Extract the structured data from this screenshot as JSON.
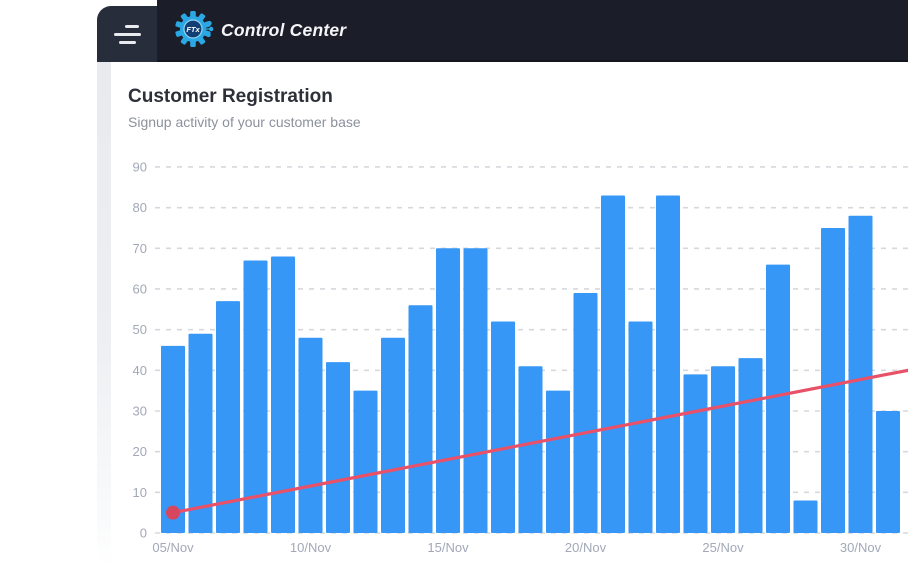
{
  "header": {
    "brand": "Control Center",
    "logo_badge": "FTx",
    "menu_icon": "hamburger-icon",
    "colors": {
      "bar": "#1b1e28",
      "menu_box": "#272d3b",
      "logo_blue": "#2ba7e3",
      "logo_navy": "#123f73"
    }
  },
  "card": {
    "title": "Customer Registration",
    "subtitle": "Signup activity of your customer base"
  },
  "chart_data": {
    "type": "bar",
    "title": "Customer Registration",
    "categories": [
      "05/Nov",
      "06/Nov",
      "07/Nov",
      "08/Nov",
      "09/Nov",
      "10/Nov",
      "11/Nov",
      "12/Nov",
      "13/Nov",
      "14/Nov",
      "15/Nov",
      "16/Nov",
      "17/Nov",
      "18/Nov",
      "19/Nov",
      "20/Nov",
      "21/Nov",
      "22/Nov",
      "23/Nov",
      "24/Nov",
      "25/Nov",
      "26/Nov",
      "27/Nov",
      "28/Nov",
      "29/Nov",
      "30/Nov",
      "01/Dec"
    ],
    "series": [
      {
        "name": "registrations",
        "type": "bar",
        "color": "#3797f6",
        "values": [
          46,
          49,
          57,
          67,
          68,
          48,
          42,
          35,
          48,
          56,
          70,
          70,
          52,
          41,
          35,
          59,
          83,
          52,
          83,
          39,
          41,
          43,
          66,
          8,
          75,
          78,
          30
        ]
      },
      {
        "name": "trend",
        "type": "line",
        "color": "#e85168",
        "dot_color": "#d6475f",
        "start_value": 5,
        "end_value": 40
      }
    ],
    "y_ticks": [
      0,
      10,
      20,
      30,
      40,
      50,
      60,
      70,
      80,
      90
    ],
    "ylim": [
      0,
      90
    ],
    "x_label_every": 5,
    "xlabel": "",
    "ylabel": "",
    "legend": "none",
    "grid": "dashed-horizontal",
    "axis_color": "#a2a8b8",
    "grid_color": "#d7d8dd"
  }
}
